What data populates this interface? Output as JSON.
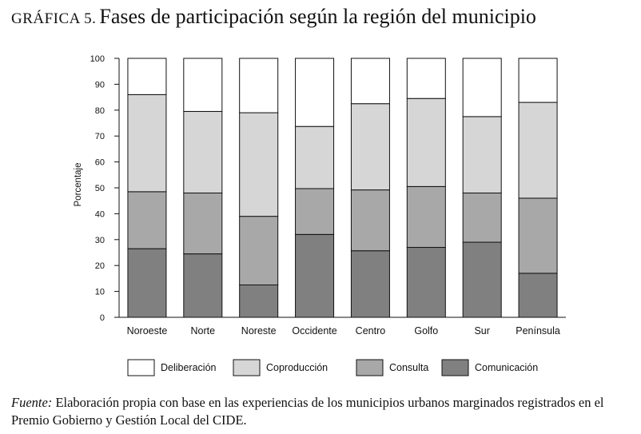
{
  "title": {
    "prefix": "GRÁFICA 5.",
    "main": "Fases de participación según la región del municipio"
  },
  "caption": {
    "italic": "Fuente:",
    "text": "Elaboración propia con base en las experiencias de los municipios urbanos marginados registrados en el Premio Gobierno y Gestión Local del CIDE."
  },
  "chart_data": {
    "type": "bar",
    "stacked": true,
    "categories": [
      "Noroeste",
      "Norte",
      "Noreste",
      "Occidente",
      "Centro",
      "Golfo",
      "Sur",
      "Península"
    ],
    "series": [
      {
        "name": "Comunicación",
        "color": "#808080",
        "values": [
          26.5,
          24.5,
          12.5,
          32,
          25.7,
          27,
          29,
          17
        ]
      },
      {
        "name": "Consulta",
        "color": "#a8a8a8",
        "values": [
          22,
          23.5,
          26.5,
          17.7,
          23.5,
          23.5,
          19,
          29
        ]
      },
      {
        "name": "Coproducción",
        "color": "#d6d6d6",
        "values": [
          37.5,
          31.5,
          40,
          24,
          33.3,
          34,
          29.5,
          37
        ]
      },
      {
        "name": "Deliberación",
        "color": "#ffffff",
        "values": [
          14,
          20.5,
          21,
          26.3,
          17.5,
          15.5,
          22.5,
          17
        ]
      }
    ],
    "legend_order": [
      "Deliberación",
      "Coproducción",
      "Consulta",
      "Comunicación"
    ],
    "ylabel": "Porcentaje",
    "xlabel": "",
    "ylim": [
      0,
      100
    ],
    "yticks": [
      0,
      10,
      20,
      30,
      40,
      50,
      60,
      70,
      80,
      90,
      100
    ],
    "grid": false,
    "legend_position": "bottom"
  }
}
